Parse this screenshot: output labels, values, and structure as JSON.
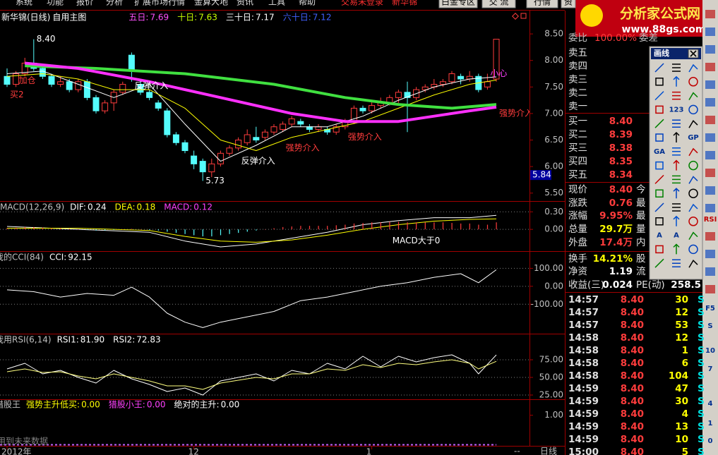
{
  "menu": {
    "items": [
      "系统",
      "功能",
      "报价",
      "分析",
      "扩展市场行情",
      "金算大地",
      "资讯",
      "工具",
      "帮助"
    ],
    "status": "交易未登录",
    "stock": "新华锦",
    "buttons": [
      "白金专区",
      "交 流",
      "行情",
      "资"
    ]
  },
  "logo": {
    "title": "分析家公式网",
    "url": "www.88gs.com"
  },
  "chart_data": [
    {
      "type": "candlestick",
      "title": "新华锦(日线)",
      "subtitle": "自用主图",
      "open": [
        7.7,
        7.55,
        7.75,
        7.95,
        7.85,
        7.7,
        7.55,
        7.6,
        7.45,
        7.6,
        7.3,
        7.05,
        7.2,
        7.4,
        8.1,
        7.55,
        7.4,
        7.2,
        7.05,
        6.6,
        6.45,
        6.2,
        6.1,
        5.9,
        6.05,
        6.25,
        6.35,
        6.45,
        6.55,
        6.55,
        6.65,
        6.7,
        6.8,
        6.85,
        6.75,
        6.7,
        6.7,
        6.65,
        6.75,
        6.85,
        7.1,
        7.05,
        7.15,
        7.2,
        7.3,
        7.4,
        7.3,
        7.45,
        7.5,
        7.55,
        7.6,
        7.7,
        7.65,
        7.7,
        7.5,
        7.65
      ],
      "high": [
        7.85,
        7.8,
        8.05,
        8.4,
        7.9,
        7.75,
        7.7,
        7.65,
        7.65,
        7.65,
        7.35,
        7.25,
        7.45,
        7.6,
        8.15,
        7.6,
        7.45,
        7.25,
        7.1,
        6.65,
        6.5,
        6.3,
        6.15,
        6.15,
        6.3,
        6.4,
        6.55,
        6.7,
        6.75,
        6.7,
        6.8,
        6.85,
        6.95,
        6.9,
        6.8,
        6.8,
        6.75,
        6.8,
        6.9,
        7.15,
        7.15,
        7.25,
        7.3,
        7.35,
        7.45,
        7.6,
        7.5,
        7.55,
        7.65,
        7.65,
        7.8,
        7.75,
        7.8,
        7.75,
        7.75,
        8.4
      ],
      "low": [
        7.5,
        7.5,
        7.7,
        7.8,
        7.65,
        7.5,
        7.5,
        7.4,
        7.4,
        7.25,
        7.0,
        7.0,
        7.05,
        7.35,
        7.6,
        7.35,
        7.25,
        7.05,
        6.55,
        6.4,
        6.25,
        5.95,
        5.73,
        5.8,
        6.0,
        6.2,
        6.3,
        6.4,
        6.45,
        6.5,
        6.6,
        6.65,
        6.75,
        6.75,
        6.65,
        6.65,
        6.6,
        6.6,
        6.7,
        6.8,
        7.0,
        7.0,
        7.1,
        7.15,
        7.2,
        6.65,
        7.25,
        7.4,
        7.45,
        7.5,
        7.55,
        7.55,
        7.6,
        7.4,
        7.45,
        7.6
      ],
      "close": [
        7.55,
        7.75,
        7.95,
        7.85,
        7.7,
        7.55,
        7.6,
        7.45,
        7.6,
        7.3,
        7.05,
        7.2,
        7.4,
        7.55,
        7.8,
        7.4,
        7.3,
        7.1,
        6.6,
        6.45,
        6.3,
        6.05,
        5.9,
        6.05,
        6.25,
        6.35,
        6.5,
        6.6,
        6.5,
        6.65,
        6.75,
        6.8,
        6.9,
        6.8,
        6.7,
        6.75,
        6.65,
        6.75,
        6.85,
        7.1,
        7.05,
        7.15,
        7.2,
        7.3,
        7.4,
        7.3,
        7.45,
        7.5,
        7.55,
        7.6,
        7.75,
        7.65,
        7.7,
        7.45,
        7.6,
        8.4
      ],
      "up_color": "#ff3c3c",
      "down_color": "#54fcfc",
      "ylim": [
        5.35,
        8.9
      ],
      "yticks": [
        {
          "value": 8.5,
          "label": "8.50"
        },
        {
          "value": 8,
          "label": "8.00"
        },
        {
          "value": 7.5,
          "label": "7.50"
        },
        {
          "value": 7,
          "label": "7.00"
        },
        {
          "value": 6.5,
          "label": "6.50"
        },
        {
          "value": 6,
          "label": "6.00"
        },
        {
          "value": 5.5,
          "label": "5.50"
        }
      ],
      "grid": false,
      "cursor": 5.84,
      "series": [
        {
          "name": "五日:",
          "readout": "7.69",
          "label_color": "#ff50ff",
          "color": "#ffffff",
          "width": 1,
          "style": "line",
          "x": [
            0,
            4,
            8,
            12,
            16,
            20,
            24,
            28,
            32,
            36,
            40,
            44,
            48,
            52,
            55
          ],
          "values": [
            7.75,
            7.8,
            7.55,
            7.3,
            7.55,
            6.8,
            6.1,
            6.4,
            6.75,
            6.75,
            6.95,
            7.25,
            7.5,
            7.65,
            7.69
          ]
        },
        {
          "name": "十日:",
          "readout": "7.63",
          "label_color": "#c8ff00",
          "color": "#ffff00",
          "width": 1,
          "style": "line",
          "x": [
            0,
            4,
            8,
            12,
            16,
            20,
            24,
            28,
            32,
            36,
            40,
            44,
            48,
            52,
            55
          ],
          "values": [
            7.7,
            7.75,
            7.65,
            7.45,
            7.45,
            7.1,
            6.5,
            6.3,
            6.55,
            6.7,
            6.85,
            7.1,
            7.35,
            7.55,
            7.63
          ]
        },
        {
          "name": "三十日:",
          "readout": "7.17",
          "label_color": "#ffffff",
          "color": "#40e040",
          "width": 4,
          "style": "line",
          "x": [
            2,
            10,
            20,
            30,
            38,
            44,
            50,
            55
          ],
          "values": [
            7.9,
            7.85,
            7.75,
            7.55,
            7.3,
            7.17,
            7.1,
            7.17
          ]
        },
        {
          "name": "六十日:",
          "readout": "7.12",
          "label_color": "#4060ff",
          "color": "#ff30ff",
          "width": 4,
          "style": "line",
          "x": [
            2,
            8,
            16,
            24,
            32,
            38,
            44,
            48,
            52,
            55
          ],
          "values": [
            7.95,
            7.85,
            7.6,
            7.3,
            7.0,
            6.85,
            6.85,
            6.95,
            7.05,
            7.12
          ]
        }
      ],
      "annotations": [
        {
          "text": "8.40",
          "x": 3,
          "y": 8.4,
          "color": "#ffffff"
        },
        {
          "text": "5.73",
          "x": 22,
          "y": 5.73,
          "color": "#ffffff"
        },
        {
          "text": "加仓",
          "x": 1,
          "y": 7.62,
          "color": "#ff3c3c"
        },
        {
          "text": "买2",
          "x": 0,
          "y": 7.35,
          "color": "#ff3c3c"
        },
        {
          "text": "反弹介入",
          "x": 14,
          "y": 7.52,
          "color": "#ffffff"
        },
        {
          "text": "反弹介入",
          "x": 26,
          "y": 6.1,
          "color": "#ffffff"
        },
        {
          "text": "强势介入",
          "x": 31,
          "y": 6.35,
          "color": "#ff3c3c"
        },
        {
          "text": "强势介入",
          "x": 38,
          "y": 6.55,
          "color": "#ff3c3c"
        },
        {
          "text": "小心",
          "x": 54,
          "y": 7.75,
          "color": "#ff40ff"
        },
        {
          "text": "强势介入",
          "x": 55,
          "y": 7.0,
          "color": "#ff3c3c"
        }
      ]
    },
    {
      "type": "line",
      "title": "MACD(12,26,9)",
      "ylim": [
        -0.36,
        0.46
      ],
      "yticks": [
        {
          "value": 0.3,
          "label": "0.30"
        },
        {
          "value": 0,
          "label": "0.00"
        }
      ],
      "grid": true,
      "series": [
        {
          "name": "DIF:",
          "readout": "0.24",
          "label_color": "#ffffff",
          "color": "#ffffff",
          "width": 1,
          "style": "line",
          "x": [
            0,
            8,
            16,
            20,
            24,
            28,
            32,
            36,
            40,
            44,
            48,
            52,
            55
          ],
          "values": [
            0.05,
            0.0,
            -0.05,
            -0.2,
            -0.3,
            -0.25,
            -0.15,
            -0.05,
            0.08,
            0.15,
            0.2,
            0.2,
            0.24
          ]
        },
        {
          "name": "DEA:",
          "readout": "0.18",
          "label_color": "#ffff00",
          "color": "#ffff00",
          "width": 1,
          "style": "line",
          "x": [
            0,
            8,
            16,
            20,
            24,
            28,
            32,
            36,
            40,
            44,
            48,
            52,
            55
          ],
          "values": [
            0.02,
            0.02,
            -0.02,
            -0.12,
            -0.2,
            -0.22,
            -0.18,
            -0.1,
            0.0,
            0.08,
            0.14,
            0.17,
            0.18
          ]
        },
        {
          "name": "MACD:",
          "readout": "0.12",
          "label_color": "#ff40ff",
          "color": "#ff3c3c",
          "color_negative": "#54fcfc",
          "style": "bar",
          "values": [
            0.02,
            0.03,
            0.04,
            0.04,
            0.03,
            0.02,
            0.02,
            0.01,
            0.0,
            -0.01,
            -0.02,
            -0.02,
            -0.01,
            0.0,
            0.01,
            0.0,
            -0.01,
            -0.02,
            -0.04,
            -0.06,
            -0.08,
            -0.1,
            -0.12,
            -0.12,
            -0.1,
            -0.08,
            -0.06,
            -0.04,
            -0.02,
            0.0,
            0.02,
            0.04,
            0.05,
            0.06,
            0.06,
            0.06,
            0.06,
            0.07,
            0.08,
            0.1,
            0.11,
            0.12,
            0.12,
            0.13,
            0.13,
            0.12,
            0.12,
            0.12,
            0.12,
            0.12,
            0.11,
            0.1,
            0.1,
            0.08,
            0.08,
            0.12
          ]
        }
      ],
      "annotations": [
        {
          "text": "MACD大于0",
          "x": 43,
          "y": -0.2,
          "color": "#ffffff"
        }
      ]
    },
    {
      "type": "line",
      "title": "我的CCI(84)",
      "ylim": [
        -260,
        188
      ],
      "yticks": [
        {
          "value": 100,
          "label": "100.00"
        },
        {
          "value": 0,
          "label": "0.00"
        },
        {
          "value": -100,
          "label": "-100.00"
        }
      ],
      "grid": true,
      "series": [
        {
          "name": "CCI:",
          "readout": "92.15",
          "label_color": "#ffffff",
          "color": "#ffffff",
          "width": 1,
          "style": "line",
          "x": [
            0,
            3,
            6,
            9,
            12,
            14,
            16,
            18,
            20,
            22,
            24,
            27,
            30,
            33,
            36,
            39,
            42,
            45,
            48,
            51,
            53,
            55
          ],
          "values": [
            -20,
            -30,
            -60,
            -40,
            -50,
            -5,
            -60,
            -150,
            -200,
            -230,
            -200,
            -170,
            -140,
            -80,
            -60,
            -30,
            0,
            20,
            50,
            70,
            20,
            92.15
          ]
        }
      ]
    },
    {
      "type": "line",
      "title": "我用RSI(6,14)",
      "ylim": [
        20,
        110
      ],
      "yticks": [
        {
          "value": 75,
          "label": "75.00"
        },
        {
          "value": 50,
          "label": "50.00"
        },
        {
          "value": 25,
          "label": "25.00"
        }
      ],
      "grid": true,
      "series": [
        {
          "name": "RSI1:",
          "readout": "81.90",
          "label_color": "#ffffff",
          "color": "#ffffff",
          "width": 1,
          "style": "line",
          "x": [
            0,
            2,
            4,
            6,
            8,
            10,
            12,
            14,
            16,
            18,
            20,
            22,
            24,
            26,
            28,
            30,
            32,
            34,
            36,
            38,
            40,
            42,
            44,
            46,
            48,
            50,
            52,
            53,
            55
          ],
          "values": [
            62,
            70,
            55,
            60,
            50,
            42,
            60,
            48,
            40,
            30,
            35,
            25,
            45,
            50,
            55,
            45,
            60,
            55,
            70,
            62,
            80,
            65,
            80,
            72,
            78,
            82,
            70,
            55,
            81.9
          ]
        },
        {
          "name": "RSI2:",
          "readout": "72.83",
          "label_color": "#ffffff",
          "color": "#ffff80",
          "width": 1,
          "style": "line",
          "x": [
            0,
            2,
            4,
            6,
            8,
            10,
            12,
            14,
            16,
            18,
            20,
            22,
            24,
            26,
            28,
            30,
            32,
            34,
            36,
            38,
            40,
            42,
            44,
            46,
            48,
            50,
            52,
            53,
            55
          ],
          "values": [
            58,
            62,
            57,
            58,
            52,
            48,
            55,
            50,
            45,
            38,
            38,
            33,
            42,
            46,
            50,
            48,
            55,
            55,
            62,
            60,
            68,
            64,
            70,
            68,
            72,
            75,
            70,
            62,
            72.83
          ]
        }
      ]
    },
    {
      "type": "line",
      "title": "猎股王",
      "ylim": [
        0,
        1.5
      ],
      "yticks": [
        {
          "value": 1,
          "label": "1.00"
        }
      ],
      "grid": false,
      "series": [
        {
          "name": "强势主升低买:",
          "readout": "0.00",
          "label_color": "#ffff00",
          "color": "#ffff00",
          "style": "level",
          "values": [
            0
          ]
        },
        {
          "name": "猎股小王:",
          "readout": "0.00",
          "label_color": "#ff40ff",
          "color": "#ff40ff",
          "style": "level",
          "values": [
            0
          ]
        },
        {
          "name": "绝对的主升:",
          "readout": "0.00",
          "label_color": "#ffffff",
          "color": "#c060ff",
          "style": "level",
          "values": [
            0
          ]
        }
      ],
      "note": "用到未来数据",
      "xticks": [
        {
          "value": 0,
          "label": "2012年"
        },
        {
          "value": 21,
          "label": "12"
        },
        {
          "value": 41,
          "label": "1"
        }
      ]
    }
  ],
  "status_bar": {
    "scroll": "--",
    "period": "日线"
  },
  "quote": {
    "top": [
      "委比",
      "100.00%",
      "委差"
    ],
    "sell": [
      "卖五",
      "卖四",
      "卖三",
      "卖二",
      "卖一"
    ],
    "buy": [
      [
        "买一",
        "8.40"
      ],
      [
        "买二",
        "8.39"
      ],
      [
        "买三",
        "8.38"
      ],
      [
        "买四",
        "8.35"
      ],
      [
        "买五",
        "8.34"
      ]
    ],
    "stats": [
      [
        "现价",
        "8.40",
        "今"
      ],
      [
        "涨跌",
        "0.76",
        "最"
      ],
      [
        "涨幅",
        "9.95%",
        "最"
      ],
      [
        "总量",
        "29.7万",
        "量"
      ],
      [
        "外盘",
        "17.4万",
        "内"
      ],
      [
        "换手",
        "14.21%",
        "股"
      ],
      [
        "净资",
        "1.19",
        "流"
      ]
    ],
    "eps": [
      "收益(三)",
      "0.024",
      "PE(动)",
      "258.5"
    ]
  },
  "trades": [
    [
      "14:57",
      "8.40",
      "30",
      "S"
    ],
    [
      "14:57",
      "8.40",
      "12",
      "S"
    ],
    [
      "14:57",
      "8.40",
      "53",
      "S"
    ],
    [
      "14:58",
      "8.40",
      "12",
      "S"
    ],
    [
      "14:58",
      "8.40",
      "1",
      "S"
    ],
    [
      "14:58",
      "8.40",
      "6",
      "S"
    ],
    [
      "14:58",
      "8.40",
      "104",
      "S"
    ],
    [
      "14:59",
      "8.40",
      "47",
      "S"
    ],
    [
      "14:59",
      "8.40",
      "30",
      "S"
    ],
    [
      "14:59",
      "8.40",
      "4",
      "S"
    ],
    [
      "14:59",
      "8.40",
      "13",
      "S"
    ],
    [
      "14:59",
      "8.40",
      "10",
      "S"
    ],
    [
      "15:00",
      "8.40",
      "5",
      "S"
    ]
  ],
  "toolbar": {
    "title": "画线",
    "labels": [
      "123",
      "GP",
      "GA",
      "A",
      "A"
    ]
  },
  "side_keys": [
    "RSI",
    "F5",
    "S",
    "10",
    "7",
    "4",
    "1",
    "0"
  ]
}
